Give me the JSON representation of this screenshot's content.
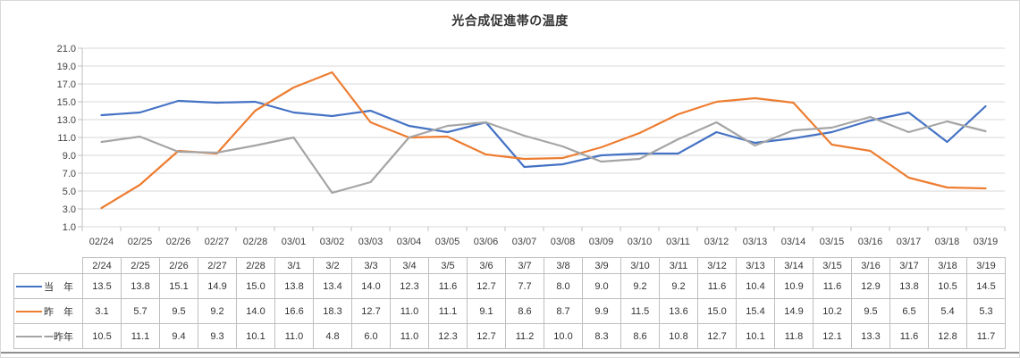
{
  "chart_data": {
    "type": "line",
    "title": "光合成促進帯の温度",
    "x_labels": [
      "02/24",
      "02/25",
      "02/26",
      "02/27",
      "02/28",
      "03/01",
      "03/02",
      "03/03",
      "03/04",
      "03/05",
      "03/06",
      "03/07",
      "03/08",
      "03/09",
      "03/10",
      "03/11",
      "03/12",
      "03/13",
      "03/14",
      "03/15",
      "03/16",
      "03/17",
      "03/18",
      "03/19"
    ],
    "y_tick_labels": [
      "21.0",
      "19.0",
      "17.0",
      "15.0",
      "13.0",
      "11.0",
      "9.0",
      "7.0",
      "5.0",
      "3.0",
      "1.0"
    ],
    "ylim": [
      1.0,
      21.0
    ],
    "y_tick_step": 2.0,
    "grid": true,
    "legend_position": "left-of-data-table",
    "table_columns": [
      "2/24",
      "2/25",
      "2/26",
      "2/27",
      "2/28",
      "3/1",
      "3/2",
      "3/3",
      "3/4",
      "3/5",
      "3/6",
      "3/7",
      "3/8",
      "3/9",
      "3/10",
      "3/11",
      "3/12",
      "3/13",
      "3/14",
      "3/15",
      "3/16",
      "3/17",
      "3/18",
      "3/19"
    ],
    "series": [
      {
        "name": "当　年",
        "color": "#4472C4",
        "values": [
          13.5,
          13.8,
          15.1,
          14.9,
          15.0,
          13.8,
          13.4,
          14.0,
          12.3,
          11.6,
          12.7,
          7.7,
          8.0,
          9.0,
          9.2,
          9.2,
          11.6,
          10.4,
          10.9,
          11.6,
          12.9,
          13.8,
          10.5,
          14.5
        ]
      },
      {
        "name": "昨　年",
        "color": "#ED7D31",
        "values": [
          3.1,
          5.7,
          9.5,
          9.2,
          14.0,
          16.6,
          18.3,
          12.7,
          11.0,
          11.1,
          9.1,
          8.6,
          8.7,
          9.9,
          11.5,
          13.6,
          15.0,
          15.4,
          14.9,
          10.2,
          9.5,
          6.5,
          5.4,
          5.3
        ]
      },
      {
        "name": "一昨年",
        "color": "#A5A5A5",
        "values": [
          10.5,
          11.1,
          9.4,
          9.3,
          10.1,
          11.0,
          4.8,
          6.0,
          11.0,
          12.3,
          12.7,
          11.2,
          10.0,
          8.3,
          8.6,
          10.8,
          12.7,
          10.1,
          11.8,
          12.1,
          13.3,
          11.6,
          12.8,
          11.7
        ]
      }
    ],
    "colors": {
      "gridline": "#D9D9D9",
      "axis": "#BFBFBF",
      "table_border": "#BFBFBF",
      "text": "#404040"
    }
  }
}
